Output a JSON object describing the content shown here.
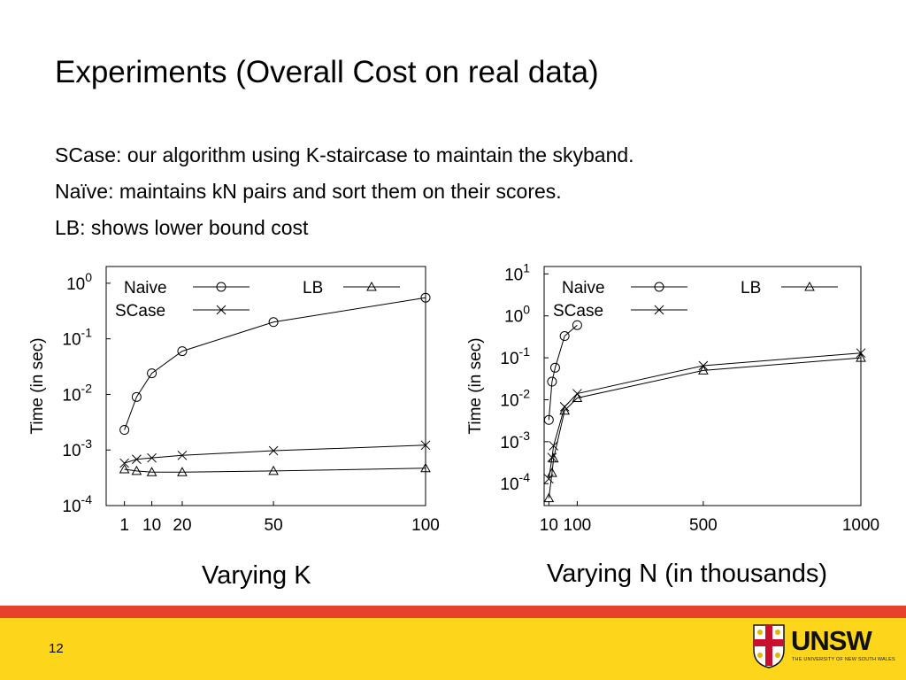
{
  "slide": {
    "title": "Experiments (Overall Cost on real data)",
    "bullets": [
      "SCase: our algorithm using K-staircase to maintain the skyband.",
      "Naïve: maintains kN pairs and sort them on their scores.",
      "LB: shows lower bound cost"
    ],
    "captions": [
      "Varying K",
      "Varying N (in thousands)"
    ],
    "page_number": "12",
    "logo": {
      "name": "UNSW",
      "subtitle": "THE UNIVERSITY OF NEW SOUTH WALES"
    }
  },
  "colors": {
    "red_band": "#e8412c",
    "yellow_band": "#fdd51a",
    "logo_crest_red": "#c8102e"
  },
  "chart_data": [
    {
      "type": "line",
      "xlabel": "",
      "ylabel": "Time (in sec)",
      "yscale": "log",
      "ylim": [
        0.0001,
        2
      ],
      "xlim": [
        -5,
        100
      ],
      "x_ticks": [
        1,
        10,
        20,
        50,
        100
      ],
      "x_tick_labels": [
        "1",
        "10",
        "20",
        "50",
        "100"
      ],
      "y_ticks": [
        {
          "base": "10",
          "exp": "0",
          "value": 1
        },
        {
          "base": "10",
          "exp": "-1",
          "value": 0.1
        },
        {
          "base": "10",
          "exp": "-2",
          "value": 0.01
        },
        {
          "base": "10",
          "exp": "-3",
          "value": 0.001
        },
        {
          "base": "10",
          "exp": "-4",
          "value": 0.0001
        }
      ],
      "legend_placement": "top",
      "series": [
        {
          "name": "Naive",
          "marker": "circle",
          "points": [
            [
              1,
              0.0023
            ],
            [
              5,
              0.009
            ],
            [
              10,
              0.024
            ],
            [
              20,
              0.06
            ],
            [
              50,
              0.2
            ],
            [
              100,
              0.55
            ]
          ]
        },
        {
          "name": "SCase",
          "marker": "x",
          "points": [
            [
              1,
              0.00058
            ],
            [
              5,
              0.00068
            ],
            [
              10,
              0.00072
            ],
            [
              20,
              0.0008
            ],
            [
              50,
              0.00097
            ],
            [
              100,
              0.00122
            ]
          ]
        },
        {
          "name": "LB",
          "marker": "triangle",
          "points": [
            [
              1,
              0.00045
            ],
            [
              5,
              0.00042
            ],
            [
              10,
              0.0004
            ],
            [
              20,
              0.0004
            ],
            [
              50,
              0.00042
            ],
            [
              100,
              0.00047
            ]
          ]
        }
      ]
    },
    {
      "type": "line",
      "xlabel": "",
      "ylabel": "Time (in sec)",
      "yscale": "log",
      "ylim": [
        3e-05,
        15
      ],
      "xlim": [
        -5,
        1000
      ],
      "x_ticks": [
        10,
        100,
        500,
        1000
      ],
      "x_tick_labels": [
        "10",
        "100",
        "500",
        "1000"
      ],
      "y_ticks": [
        {
          "base": "10",
          "exp": "1",
          "value": 10
        },
        {
          "base": "10",
          "exp": "0",
          "value": 1
        },
        {
          "base": "10",
          "exp": "-1",
          "value": 0.1
        },
        {
          "base": "10",
          "exp": "-2",
          "value": 0.01
        },
        {
          "base": "10",
          "exp": "-3",
          "value": 0.001
        },
        {
          "base": "10",
          "exp": "-4",
          "value": 0.0001
        }
      ],
      "legend_placement": "top",
      "series": [
        {
          "name": "Naive",
          "marker": "circle",
          "points": [
            [
              10,
              0.0033
            ],
            [
              20,
              0.027
            ],
            [
              30,
              0.058
            ],
            [
              60,
              0.33
            ],
            [
              100,
              0.6
            ]
          ]
        },
        {
          "name": "SCase",
          "marker": "x",
          "points": [
            [
              10,
              0.00013
            ],
            [
              20,
              0.00042
            ],
            [
              25,
              0.0008
            ],
            [
              60,
              0.0068
            ],
            [
              100,
              0.014
            ],
            [
              500,
              0.065
            ],
            [
              1000,
              0.13
            ]
          ]
        },
        {
          "name": "LB",
          "marker": "triangle",
          "points": [
            [
              10,
              4.5e-05
            ],
            [
              20,
              0.00018
            ],
            [
              25,
              0.0004
            ],
            [
              60,
              0.0055
            ],
            [
              100,
              0.011
            ],
            [
              500,
              0.05
            ],
            [
              1000,
              0.1
            ]
          ]
        }
      ]
    }
  ]
}
